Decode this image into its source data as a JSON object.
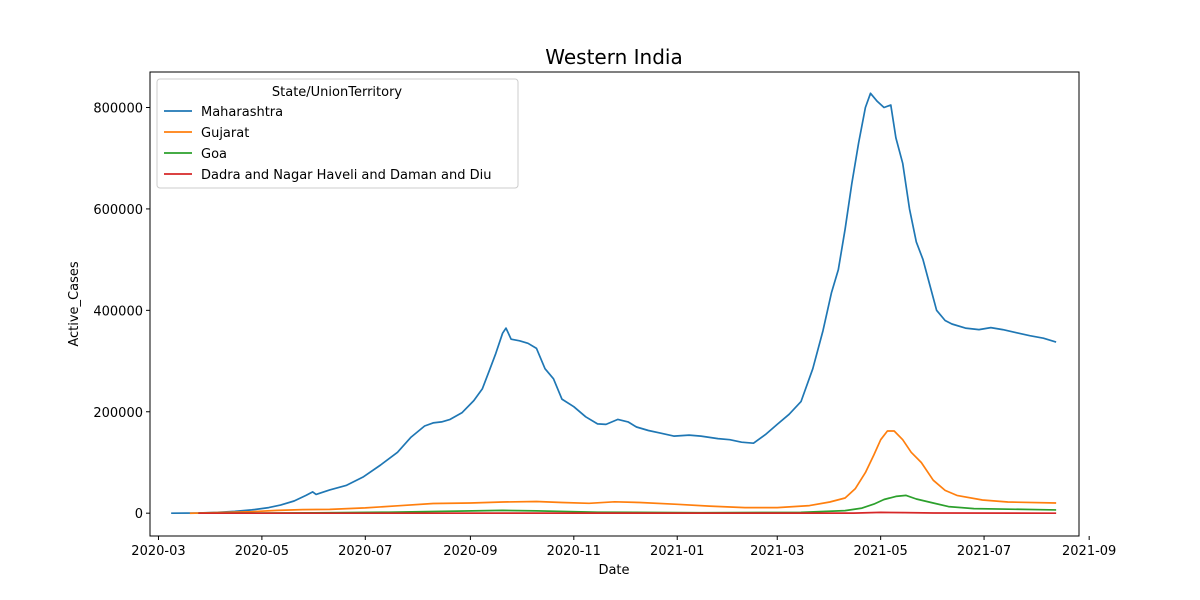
{
  "chart_data": {
    "type": "line",
    "title": "Western India",
    "xlabel": "Date",
    "ylabel": "Active_Cases",
    "grid": false,
    "legend": {
      "title": "State/UnionTerritory",
      "placement": "top-left"
    },
    "xlim": [
      "2020-02-25",
      "2021-08-26"
    ],
    "ylim": [
      -45000,
      870000
    ],
    "x_ticks": [
      "2020-03-01",
      "2020-05-01",
      "2020-07-01",
      "2020-09-01",
      "2020-11-01",
      "2021-01-01",
      "2021-03-01",
      "2021-05-01",
      "2021-07-01",
      "2021-09-01"
    ],
    "x_tick_labels": [
      "2020-03",
      "2020-05",
      "2020-07",
      "2020-09",
      "2020-11",
      "2021-01",
      "2021-03",
      "2021-05",
      "2021-07",
      "2021-09"
    ],
    "y_ticks": [
      0,
      200000,
      400000,
      600000,
      800000
    ],
    "y_tick_labels": [
      "0",
      "200000",
      "400000",
      "600000",
      "800000"
    ],
    "series": [
      {
        "name": "Maharashtra",
        "color": "#1f77b4",
        "points": [
          [
            "2020-03-09",
            0
          ],
          [
            "2020-03-25",
            300
          ],
          [
            "2020-04-05",
            1500
          ],
          [
            "2020-04-15",
            3500
          ],
          [
            "2020-04-25",
            6500
          ],
          [
            "2020-05-05",
            11000
          ],
          [
            "2020-05-12",
            16000
          ],
          [
            "2020-05-20",
            24000
          ],
          [
            "2020-05-27",
            35000
          ],
          [
            "2020-05-31",
            42000
          ],
          [
            "2020-06-02",
            37000
          ],
          [
            "2020-06-10",
            46000
          ],
          [
            "2020-06-20",
            55000
          ],
          [
            "2020-06-30",
            72000
          ],
          [
            "2020-07-10",
            95000
          ],
          [
            "2020-07-20",
            120000
          ],
          [
            "2020-07-28",
            150000
          ],
          [
            "2020-08-05",
            172000
          ],
          [
            "2020-08-10",
            178000
          ],
          [
            "2020-08-15",
            180000
          ],
          [
            "2020-08-20",
            185000
          ],
          [
            "2020-08-27",
            198000
          ],
          [
            "2020-09-03",
            222000
          ],
          [
            "2020-09-08",
            245000
          ],
          [
            "2020-09-12",
            280000
          ],
          [
            "2020-09-16",
            315000
          ],
          [
            "2020-09-20",
            355000
          ],
          [
            "2020-09-22",
            365000
          ],
          [
            "2020-09-25",
            343000
          ],
          [
            "2020-09-30",
            340000
          ],
          [
            "2020-10-05",
            335000
          ],
          [
            "2020-10-10",
            325000
          ],
          [
            "2020-10-15",
            285000
          ],
          [
            "2020-10-20",
            265000
          ],
          [
            "2020-10-25",
            225000
          ],
          [
            "2020-11-01",
            210000
          ],
          [
            "2020-11-08",
            190000
          ],
          [
            "2020-11-15",
            176000
          ],
          [
            "2020-11-20",
            175000
          ],
          [
            "2020-11-27",
            185000
          ],
          [
            "2020-12-03",
            180000
          ],
          [
            "2020-12-08",
            170000
          ],
          [
            "2020-12-15",
            163000
          ],
          [
            "2020-12-22",
            158000
          ],
          [
            "2020-12-30",
            152000
          ],
          [
            "2021-01-08",
            154000
          ],
          [
            "2021-01-15",
            152000
          ],
          [
            "2021-01-25",
            147000
          ],
          [
            "2021-02-01",
            145000
          ],
          [
            "2021-02-08",
            140000
          ],
          [
            "2021-02-15",
            138000
          ],
          [
            "2021-02-22",
            155000
          ],
          [
            "2021-03-01",
            175000
          ],
          [
            "2021-03-08",
            195000
          ],
          [
            "2021-03-15",
            220000
          ],
          [
            "2021-03-22",
            285000
          ],
          [
            "2021-03-28",
            360000
          ],
          [
            "2021-04-02",
            435000
          ],
          [
            "2021-04-06",
            480000
          ],
          [
            "2021-04-10",
            560000
          ],
          [
            "2021-04-14",
            650000
          ],
          [
            "2021-04-18",
            730000
          ],
          [
            "2021-04-22",
            800000
          ],
          [
            "2021-04-25",
            828000
          ],
          [
            "2021-04-29",
            812000
          ],
          [
            "2021-05-03",
            800000
          ],
          [
            "2021-05-07",
            805000
          ],
          [
            "2021-05-10",
            740000
          ],
          [
            "2021-05-14",
            690000
          ],
          [
            "2021-05-18",
            600000
          ],
          [
            "2021-05-22",
            535000
          ],
          [
            "2021-05-26",
            500000
          ],
          [
            "2021-05-30",
            450000
          ],
          [
            "2021-06-03",
            400000
          ],
          [
            "2021-06-08",
            380000
          ],
          [
            "2021-06-12",
            373000
          ],
          [
            "2021-06-20",
            365000
          ],
          [
            "2021-06-28",
            362000
          ],
          [
            "2021-07-05",
            366000
          ],
          [
            "2021-07-12",
            362000
          ],
          [
            "2021-07-20",
            356000
          ],
          [
            "2021-07-28",
            350000
          ],
          [
            "2021-08-05",
            345000
          ],
          [
            "2021-08-12",
            338000
          ]
        ]
      },
      {
        "name": "Gujarat",
        "color": "#ff7f0e",
        "points": [
          [
            "2020-03-20",
            0
          ],
          [
            "2020-04-10",
            1500
          ],
          [
            "2020-04-25",
            3000
          ],
          [
            "2020-05-10",
            5500
          ],
          [
            "2020-05-25",
            7000
          ],
          [
            "2020-06-10",
            7500
          ],
          [
            "2020-07-01",
            10500
          ],
          [
            "2020-07-20",
            14500
          ],
          [
            "2020-08-10",
            19000
          ],
          [
            "2020-09-01",
            20000
          ],
          [
            "2020-09-20",
            22000
          ],
          [
            "2020-10-10",
            23000
          ],
          [
            "2020-10-25",
            21000
          ],
          [
            "2020-11-10",
            19500
          ],
          [
            "2020-11-25",
            22500
          ],
          [
            "2020-12-10",
            21000
          ],
          [
            "2021-01-01",
            17500
          ],
          [
            "2021-01-20",
            14000
          ],
          [
            "2021-02-10",
            11000
          ],
          [
            "2021-03-01",
            11000
          ],
          [
            "2021-03-20",
            15000
          ],
          [
            "2021-04-01",
            22000
          ],
          [
            "2021-04-10",
            30000
          ],
          [
            "2021-04-16",
            48000
          ],
          [
            "2021-04-22",
            80000
          ],
          [
            "2021-04-27",
            115000
          ],
          [
            "2021-05-01",
            145000
          ],
          [
            "2021-05-05",
            162000
          ],
          [
            "2021-05-09",
            162000
          ],
          [
            "2021-05-14",
            145000
          ],
          [
            "2021-05-19",
            120000
          ],
          [
            "2021-05-25",
            100000
          ],
          [
            "2021-06-01",
            65000
          ],
          [
            "2021-06-08",
            45000
          ],
          [
            "2021-06-15",
            35000
          ],
          [
            "2021-06-30",
            26000
          ],
          [
            "2021-07-15",
            22000
          ],
          [
            "2021-08-12",
            20000
          ]
        ]
      },
      {
        "name": "Goa",
        "color": "#2ca02c",
        "points": [
          [
            "2020-03-25",
            0
          ],
          [
            "2020-06-01",
            500
          ],
          [
            "2020-07-15",
            2000
          ],
          [
            "2020-08-15",
            3500
          ],
          [
            "2020-09-20",
            5500
          ],
          [
            "2020-10-10",
            4500
          ],
          [
            "2020-11-15",
            2000
          ],
          [
            "2021-01-15",
            1000
          ],
          [
            "2021-03-15",
            1500
          ],
          [
            "2021-04-10",
            5000
          ],
          [
            "2021-04-20",
            10000
          ],
          [
            "2021-04-27",
            18000
          ],
          [
            "2021-05-03",
            27000
          ],
          [
            "2021-05-10",
            33000
          ],
          [
            "2021-05-16",
            35000
          ],
          [
            "2021-05-22",
            28000
          ],
          [
            "2021-06-01",
            20000
          ],
          [
            "2021-06-10",
            13000
          ],
          [
            "2021-06-25",
            9000
          ],
          [
            "2021-08-12",
            6500
          ]
        ]
      },
      {
        "name": "Dadra and Nagar Haveli and Daman and Diu",
        "color": "#d62728",
        "points": [
          [
            "2020-03-25",
            0
          ],
          [
            "2021-04-15",
            200
          ],
          [
            "2021-05-01",
            1500
          ],
          [
            "2021-05-15",
            1200
          ],
          [
            "2021-06-01",
            300
          ],
          [
            "2021-08-12",
            0
          ]
        ]
      }
    ]
  }
}
